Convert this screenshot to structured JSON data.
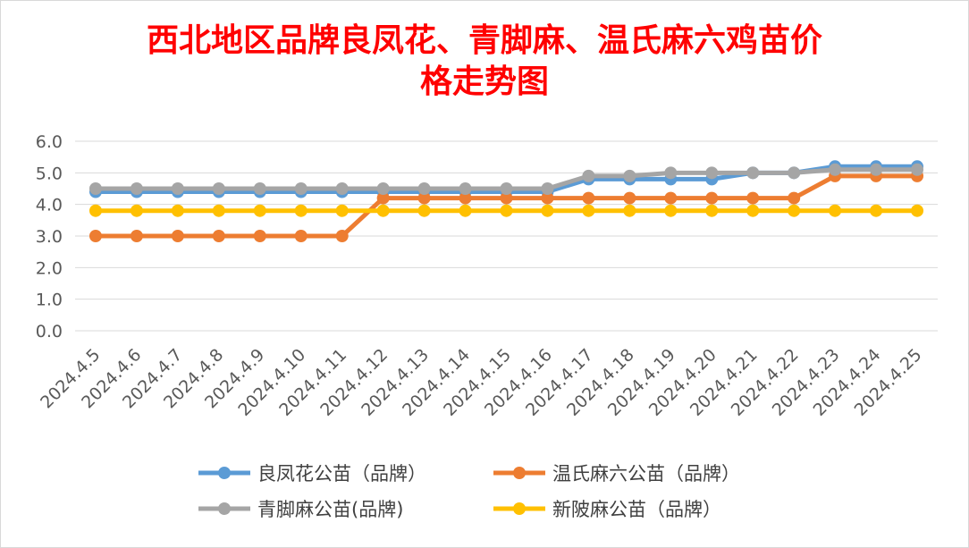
{
  "chart_data": {
    "type": "line",
    "title_line1": "西北地区品牌良凤花、青脚麻、温氏麻六鸡苗价",
    "title_line2": "格走势图",
    "x": [
      "2024.4.5",
      "2024.4.6",
      "2024.4.7",
      "2024.4.8",
      "2024.4.9",
      "2024.4.10",
      "2024.4.11",
      "2024.4.12",
      "2024.4.13",
      "2024.4.14",
      "2024.4.15",
      "2024.4.16",
      "2024.4.17",
      "2024.4.18",
      "2024.4.19",
      "2024.4.20",
      "2024.4.21",
      "2024.4.22",
      "2024.4.23",
      "2024.4.24",
      "2024.4.25"
    ],
    "ylim": [
      0,
      6
    ],
    "yticks": [
      "0.0",
      "1.0",
      "2.0",
      "3.0",
      "4.0",
      "5.0",
      "6.0"
    ],
    "grid": true,
    "legend_position": "bottom",
    "series": [
      {
        "name": "良凤花公苗（品牌）",
        "color": "#5b9bd5",
        "values": [
          4.4,
          4.4,
          4.4,
          4.4,
          4.4,
          4.4,
          4.4,
          4.4,
          4.4,
          4.4,
          4.4,
          4.4,
          4.8,
          4.8,
          4.8,
          4.8,
          5.0,
          5.0,
          5.2,
          5.2,
          5.2
        ]
      },
      {
        "name": "温氏麻六公苗（品牌）",
        "color": "#ed7d31",
        "values": [
          3.0,
          3.0,
          3.0,
          3.0,
          3.0,
          3.0,
          3.0,
          4.2,
          4.2,
          4.2,
          4.2,
          4.2,
          4.2,
          4.2,
          4.2,
          4.2,
          4.2,
          4.2,
          4.9,
          4.9,
          4.9
        ]
      },
      {
        "name": "青脚麻公苗(品牌)",
        "color": "#a5a5a5",
        "values": [
          4.5,
          4.5,
          4.5,
          4.5,
          4.5,
          4.5,
          4.5,
          4.5,
          4.5,
          4.5,
          4.5,
          4.5,
          4.9,
          4.9,
          5.0,
          5.0,
          5.0,
          5.0,
          5.1,
          5.1,
          5.1
        ]
      },
      {
        "name": "新陂麻公苗（品牌）",
        "color": "#ffc000",
        "values": [
          3.8,
          3.8,
          3.8,
          3.8,
          3.8,
          3.8,
          3.8,
          3.8,
          3.8,
          3.8,
          3.8,
          3.8,
          3.8,
          3.8,
          3.8,
          3.8,
          3.8,
          3.8,
          3.8,
          3.8,
          3.8
        ]
      }
    ]
  }
}
